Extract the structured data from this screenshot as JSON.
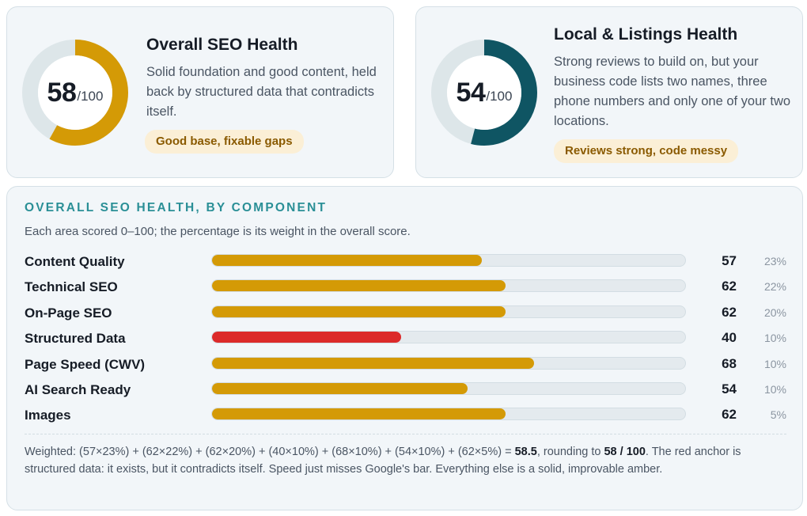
{
  "colors": {
    "amber": "#d49a06",
    "red": "#dc2a2a",
    "teal_dark": "#0f5563",
    "teal_accent": "#2a8f96",
    "track": "#dde6e9"
  },
  "overall": {
    "score": "58",
    "denominator": "/100",
    "score_value": 58,
    "title": "Overall SEO Health",
    "description": "Solid foundation and good content, held back by structured data that contradicts itself.",
    "badge": "Good base, fixable gaps"
  },
  "local": {
    "score": "54",
    "denominator": "/100",
    "score_value": 54,
    "title": "Local & Listings Health",
    "description": "Strong reviews to build on, but your business code lists two names, three phone numbers and only one of your two locations.",
    "badge": "Reviews strong, code messy"
  },
  "breakdown": {
    "title": "OVERALL SEO HEALTH, BY COMPONENT",
    "subtitle": "Each area scored 0–100; the percentage is its weight in the overall score.",
    "rows": [
      {
        "label": "Content Quality",
        "score": "57",
        "value": 57,
        "weight": "23%",
        "status": "amber"
      },
      {
        "label": "Technical SEO",
        "score": "62",
        "value": 62,
        "weight": "22%",
        "status": "amber"
      },
      {
        "label": "On-Page SEO",
        "score": "62",
        "value": 62,
        "weight": "20%",
        "status": "amber"
      },
      {
        "label": "Structured Data",
        "score": "40",
        "value": 40,
        "weight": "10%",
        "status": "red"
      },
      {
        "label": "Page Speed (CWV)",
        "score": "68",
        "value": 68,
        "weight": "10%",
        "status": "amber"
      },
      {
        "label": "AI Search Ready",
        "score": "54",
        "value": 54,
        "weight": "10%",
        "status": "amber"
      },
      {
        "label": "Images",
        "score": "62",
        "value": 62,
        "weight": "5%",
        "status": "amber"
      }
    ],
    "footnote": {
      "part1": "Weighted: (57×23%) + (62×22%) + (62×20%) + (40×10%) + (68×10%) + (54×10%) + (62×5%) = ",
      "weighted_result": "58.5",
      "part2": ", rounding to ",
      "rounded": "58 / 100",
      "part3": ". The red anchor is structured data: it exists, but it contradicts itself. Speed just misses Google's bar. Everything else is a solid, improvable amber."
    }
  }
}
